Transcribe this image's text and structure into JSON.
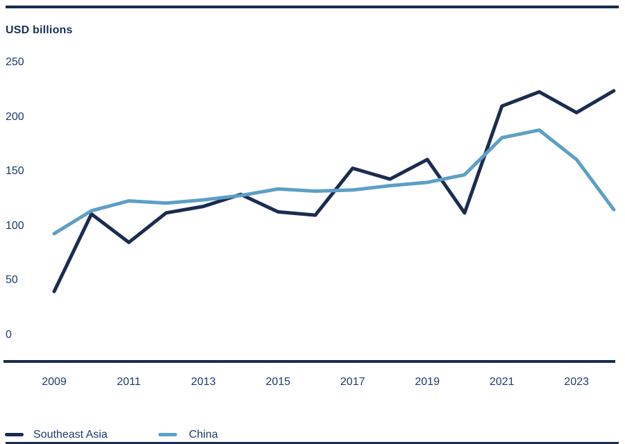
{
  "page": {
    "heading": "USD billions"
  },
  "colors": {
    "rule": "#1a2b50",
    "axis_line": "#1a2b50",
    "tick_text": "#1d3a6e",
    "heading_text": "#163059",
    "southeast_asia": "#1b2c51",
    "china": "#5d9fc5"
  },
  "chart_data": {
    "type": "line",
    "title": "USD billions",
    "xlabel": "",
    "ylabel": "USD billions",
    "ylim": [
      0,
      250
    ],
    "grid": false,
    "legend_position": "bottom",
    "x": [
      2009,
      2010,
      2011,
      2012,
      2013,
      2014,
      2015,
      2016,
      2017,
      2018,
      2019,
      2020,
      2021,
      2022,
      2023,
      2024
    ],
    "x_tick_labels": [
      "2009",
      "2011",
      "2013",
      "2015",
      "2017",
      "2019",
      "2021",
      "2023"
    ],
    "y_ticks": [
      250,
      200,
      150,
      100,
      50,
      0
    ],
    "series": [
      {
        "name": "Southeast Asia",
        "color": "#1b2c51",
        "values": [
          40,
          111,
          85,
          112,
          118,
          129,
          113,
          110,
          153,
          143,
          161,
          112,
          210,
          223,
          204,
          224
        ]
      },
      {
        "name": "China",
        "color": "#5d9fc5",
        "values": [
          93,
          114,
          123,
          121,
          124,
          128,
          134,
          132,
          133,
          137,
          140,
          147,
          181,
          188,
          161,
          115
        ]
      }
    ]
  },
  "legend": {
    "items": [
      {
        "label": "Southeast Asia",
        "color": "#1b2c51"
      },
      {
        "label": "China",
        "color": "#5d9fc5"
      }
    ]
  }
}
